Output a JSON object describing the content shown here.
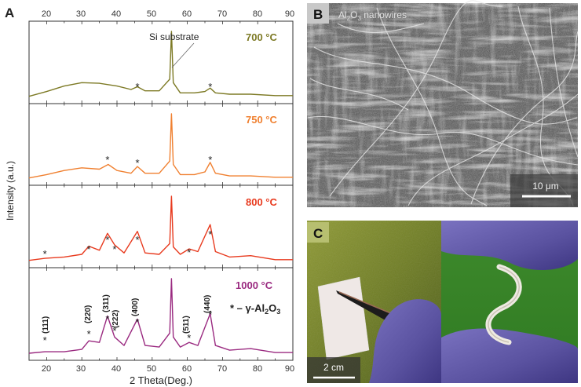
{
  "panel_labels": {
    "a": "A",
    "b": "B",
    "c": "C"
  },
  "panel_a": {
    "top_axis_ticks": [
      "20",
      "30",
      "40",
      "50",
      "60",
      "70",
      "80",
      "90"
    ],
    "bottom_axis_ticks": [
      "20",
      "30",
      "40",
      "50",
      "60",
      "70",
      "80",
      "90"
    ],
    "xlabel": "2 Theta(Deg.)",
    "ylabel": "Intensity (a.u.)",
    "annotation_si": "Si substrate",
    "legend_symbol": "* – γ-Al",
    "legend_sub": "2",
    "legend_mid": "O",
    "legend_sub2": "3",
    "peak_labels": [
      "(111)",
      "(220)",
      "(311)",
      "(222)",
      "(400)",
      "(511)",
      "(440)"
    ],
    "series_labels": [
      "700 °C",
      "750 °C",
      "800 °C",
      "1000 °C"
    ],
    "colors": {
      "s700": "#7d7a25",
      "s750": "#f08030",
      "s800": "#e83a1e",
      "s1000": "#9a2a80"
    }
  },
  "panel_b": {
    "title": "Al",
    "title_sub": "2",
    "title_mid": "O",
    "title_sub2": "3",
    "title_rest": " nanowires",
    "scale": "10 μm"
  },
  "panel_c": {
    "scale": "2 cm"
  },
  "chart_data": {
    "type": "line",
    "xlabel": "2 Theta(Deg.)",
    "ylabel": "Intensity (a.u.)",
    "xlim": [
      15,
      90
    ],
    "series": [
      {
        "name": "700 °C",
        "x": [
          15,
          20,
          25,
          30,
          35,
          40,
          44,
          45.8,
          48,
          52,
          55,
          55.5,
          56,
          58,
          62,
          65,
          66.5,
          68,
          72,
          78,
          85,
          90
        ],
        "y": [
          0.05,
          0.12,
          0.2,
          0.25,
          0.24,
          0.2,
          0.15,
          0.19,
          0.13,
          0.13,
          0.3,
          1.0,
          0.25,
          0.1,
          0.1,
          0.12,
          0.17,
          0.1,
          0.08,
          0.08,
          0.06,
          0.06
        ]
      },
      {
        "name": "750 °C",
        "x": [
          15,
          20,
          25,
          30,
          35,
          37.5,
          40,
          44,
          45.8,
          48,
          52,
          55,
          55.5,
          56,
          58,
          62,
          65,
          66.5,
          68,
          72,
          78,
          85,
          90
        ],
        "y": [
          0.05,
          0.1,
          0.16,
          0.2,
          0.18,
          0.25,
          0.16,
          0.12,
          0.22,
          0.12,
          0.12,
          0.3,
          1.0,
          0.25,
          0.1,
          0.1,
          0.14,
          0.28,
          0.12,
          0.08,
          0.08,
          0.06,
          0.06
        ]
      },
      {
        "name": "800 °C",
        "x": [
          15,
          19.5,
          25,
          30,
          32,
          35,
          37.3,
          39.3,
          42,
          45.8,
          48,
          52,
          55,
          55.5,
          56,
          58,
          60.5,
          63,
          66.5,
          68,
          72,
          78,
          85,
          90
        ],
        "y": [
          0.05,
          0.08,
          0.1,
          0.14,
          0.26,
          0.2,
          0.45,
          0.28,
          0.16,
          0.48,
          0.16,
          0.14,
          0.3,
          1.0,
          0.25,
          0.14,
          0.22,
          0.18,
          0.58,
          0.18,
          0.1,
          0.12,
          0.06,
          0.06
        ]
      },
      {
        "name": "1000 °C",
        "x": [
          15,
          19.5,
          25,
          30,
          32,
          35,
          37.3,
          39.3,
          42,
          45.8,
          48,
          52,
          55,
          55.5,
          56,
          58,
          60.5,
          63,
          66.5,
          68,
          72,
          78,
          85,
          90
        ],
        "y": [
          0.04,
          0.06,
          0.06,
          0.09,
          0.2,
          0.18,
          0.52,
          0.25,
          0.14,
          0.48,
          0.14,
          0.12,
          0.3,
          1.0,
          0.25,
          0.12,
          0.18,
          0.14,
          0.55,
          0.14,
          0.08,
          0.1,
          0.05,
          0.05
        ]
      }
    ],
    "peaks_marked": [
      19.5,
      32,
      37.3,
      39.3,
      45.8,
      60.5,
      66.5
    ]
  }
}
